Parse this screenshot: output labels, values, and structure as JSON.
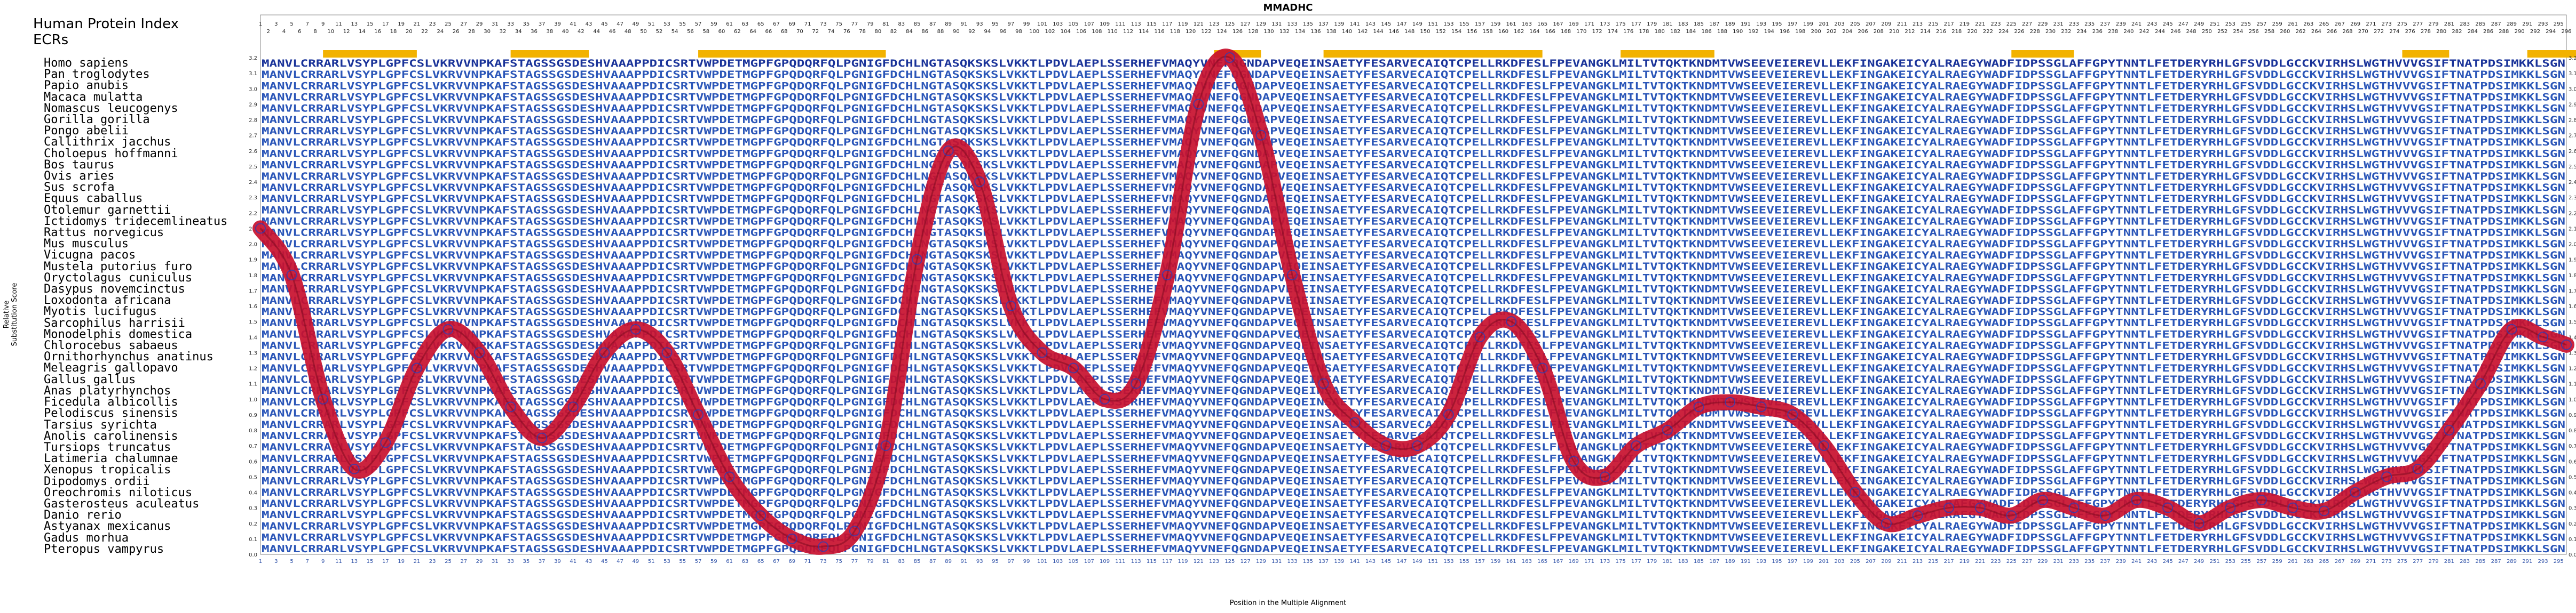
{
  "chart_data": {
    "type": "line",
    "title": "MMADHC",
    "xlabel": "Position in the Multiple Alignment",
    "ylabel": "Relative Substitution Score",
    "ylim": [
      0,
      3.2
    ],
    "xlim": [
      1,
      296
    ],
    "yticks": [
      "0.0",
      "0.1",
      "0.2",
      "0.3",
      "0.4",
      "0.5",
      "0.6",
      "0.7",
      "0.8",
      "0.9",
      "1.0",
      "1.1",
      "1.2",
      "1.3",
      "1.4",
      "1.5",
      "1.6",
      "1.7",
      "1.8",
      "1.9",
      "2.0",
      "2.1",
      "2.2",
      "2.3",
      "2.4",
      "2.5",
      "2.6",
      "2.7",
      "2.8",
      "2.9",
      "3.0",
      "3.1",
      "3.2"
    ],
    "xtick_step": 2,
    "panel_labels": [
      "Human Protein Index",
      "ECRs"
    ],
    "ecr_regions": [
      [
        9,
        21
      ],
      [
        33,
        43
      ],
      [
        57,
        81
      ],
      [
        123,
        129
      ],
      [
        137,
        165
      ],
      [
        175,
        187
      ],
      [
        225,
        233
      ],
      [
        275,
        281
      ],
      [
        291,
        301
      ]
    ],
    "series": [
      {
        "x": [
          1,
          5,
          9,
          13,
          17,
          21,
          25,
          29,
          33,
          37,
          41,
          45,
          49,
          53,
          57,
          61,
          65,
          69,
          73,
          77,
          81,
          85,
          89,
          93,
          97,
          101,
          105,
          109,
          113,
          117,
          121,
          125,
          129,
          133,
          137,
          141,
          145,
          149,
          153,
          157,
          161,
          165,
          169,
          173,
          177,
          181,
          185,
          189,
          193,
          197,
          201,
          205,
          209,
          213,
          217,
          221,
          225,
          229,
          233,
          237,
          241,
          245,
          249,
          253,
          257,
          261,
          265,
          269,
          273,
          277,
          281,
          285,
          289,
          293,
          296
        ],
        "y": [
          2.1,
          1.8,
          1.0,
          0.55,
          0.72,
          1.2,
          1.45,
          1.3,
          0.95,
          0.75,
          0.95,
          1.3,
          1.45,
          1.3,
          0.9,
          0.5,
          0.25,
          0.1,
          0.05,
          0.15,
          0.7,
          1.9,
          2.6,
          2.4,
          1.6,
          1.3,
          1.2,
          1.0,
          1.1,
          1.8,
          2.9,
          3.2,
          2.7,
          1.8,
          1.1,
          0.85,
          0.7,
          0.7,
          0.9,
          1.4,
          1.5,
          1.2,
          0.6,
          0.5,
          0.7,
          0.8,
          0.95,
          0.98,
          0.95,
          0.9,
          0.7,
          0.4,
          0.2,
          0.25,
          0.3,
          0.3,
          0.25,
          0.35,
          0.3,
          0.25,
          0.35,
          0.3,
          0.2,
          0.3,
          0.35,
          0.3,
          0.28,
          0.4,
          0.5,
          0.55,
          0.8,
          1.1,
          1.45,
          1.4,
          1.35
        ]
      }
    ],
    "colors": {
      "line": "#c8102e",
      "marker": "#2040c0",
      "seq_human": "#1a3399",
      "seq_other": "#2b56b8",
      "ecr": "#f2b200"
    }
  },
  "species": [
    "Homo sapiens",
    "Pan troglodytes",
    "Papio anubis",
    "Macaca mulatta",
    "Nomascus leucogenys",
    "Gorilla gorilla",
    "Pongo abelii",
    "Callithrix jacchus",
    "Choloepus hoffmanni",
    "Bos taurus",
    "Ovis aries",
    "Sus scrofa",
    "Equus caballus",
    "Otolemur garnettii",
    "Ictidomys tridecemlineatus",
    "Rattus norvegicus",
    "Mus musculus",
    "Vicugna pacos",
    "Mustela putorius furo",
    "Oryctolagus cuniculus",
    "Dasypus novemcinctus",
    "Loxodonta africana",
    "Myotis lucifugus",
    "Sarcophilus harrisii",
    "Monodelphis domestica",
    "Chlorocebus sabaeus",
    "Ornithorhynchus anatinus",
    "Meleagris gallopavo",
    "Gallus gallus",
    "Anas platyrhynchos",
    "Ficedula albicollis",
    "Pelodiscus sinensis",
    "Tarsius syrichta",
    "Anolis carolinensis",
    "Tursiops truncatus",
    "Latimeria chalumnae",
    "Xenopus tropicalis",
    "Dipodomys ordii",
    "Oreochromis niloticus",
    "Gasterosteus aculeatus",
    "Danio rerio",
    "Astyanax mexicanus",
    "Gadus morhua",
    "Pteropus vampyrus"
  ],
  "sequence_rows": [
    "MANVLCRRARLVSYPLGPFCSLVKRVVNPKAFSTAGSSGSDESHVAAAPPDICSRTVWPDETMGPFGPQDQRFQLPGNIGFDCHLNGTASQKSKSLVKKTLPDVLAEPLSSERHEFVMAQYVNEFQGNDAPVEQEINSAETYFESARVECAIQTCPELLRKDFESLFPEVANGKLMILTVTQKTKNDMTVWSEEVEIEREVLLEKFINGAKEICYALRAEGYWADFIDPSSGLAFFGPYTNNTLFETDERYRHLGFSVDDLGCCKVIRHSLWGTHVVVGSIFTNATPDSIMKKLSGN",
    "MANVLCRRARLVSYPLGPFCSLVKRVVNPKAFSTAGSSGSDESHVAAAPPDICSRTVWPDETMGPFGPQDQRFQLPGNIGFDCHLNGTASQKSKSLVKKTLPDVLAEPLSSERHEFVMAQYVNEFQGNDAPVEQEINSAETYFESARVECAIQTCPELLRKDFESLFPEVANGKLMILTVTQKTKNDMTVWSEEVEIEREVLLEKFINGAKEICYALRAEGYWADFIDPSSGLAFFGPYTNNTLFETDERYRHLGFSVDDLGCCKVIRHSLWGTHVVVGSIFTNATPDSIMKKLSGN",
    "MANVLCRRARLVSYPLGPFCSLVKRVVNPKAFSTAGSSGSDESHVAAAPPDICSRTVWPDETMGPFGPQDQRFQLPGNIGFDCHLNGTASQKSKSLVKKTLPDVLAEPLSSERHEFVMAQYVNEFQGNDAPVEQEINSAETYFESARVECAIQTCPELLRKDFESLFPEVANGKLMILTVTQKTKNDMTVWSEEVEIEREVLLEKFINGAKEICYALRAEGYWADFIDPSSGLAFFGPYTNNTLFETDERYRHLGFSVDDLGCCKVIRHSLWGTHVVVGSIFTNATPDSIMKKLSGN",
    "MANVLCRRARLVSYPLGPFCSLVKRVVNPKAFSTAGSSGSDESHVAAAPPDICSRTVWPDETMGPFGPQDQRFQLPGNIGFDCHLNGTASQKSKSLVKKTLPDVLAEPLSSERHEFVMAQYVNEFQGNDAPVEQEINSAETYFESARVECAIQTCPELLRKDFESLFPEVANGKLMILTVTQKTKNDMTVWSEEVEIEREVLLEKFINGAKEICYALRAEGYWADFIDPSSGLAFFGPYTNNTLFETDERYRHLGFSVDDLGCCKVIRHSLWGTHVVVGSIFTNATPDSIMKKLSGN"
  ]
}
